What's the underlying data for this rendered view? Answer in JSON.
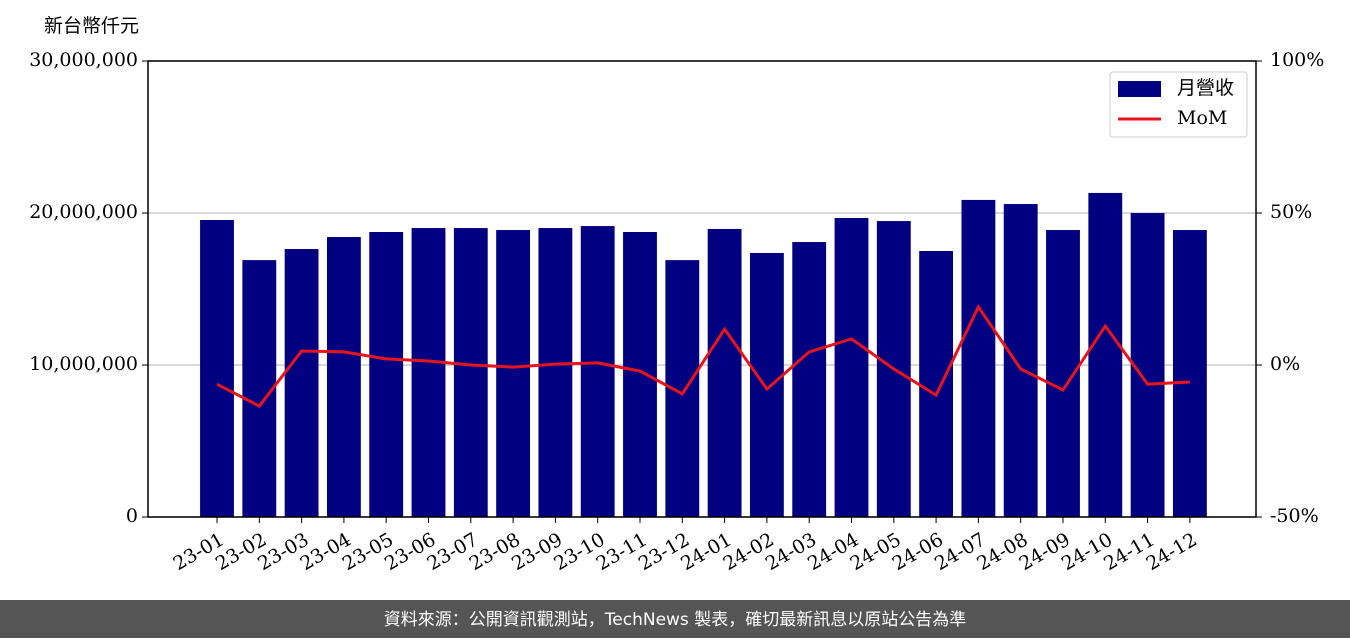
{
  "chart_data": {
    "type": "bar-line",
    "y_label": "新台幣仟元",
    "categories": [
      "23-01",
      "23-02",
      "23-03",
      "23-04",
      "23-05",
      "23-06",
      "23-07",
      "23-08",
      "23-09",
      "23-10",
      "23-11",
      "23-12",
      "24-01",
      "24-02",
      "24-03",
      "24-04",
      "24-05",
      "24-06",
      "24-07",
      "24-08",
      "24-09",
      "24-10",
      "24-11",
      "24-12"
    ],
    "series": [
      {
        "name": "月營收",
        "type": "bar",
        "color": "#000080",
        "values": [
          19540000,
          16900000,
          17630000,
          18420000,
          18750000,
          19010000,
          19010000,
          18880000,
          19010000,
          19140000,
          18750000,
          16900000,
          18950000,
          17370000,
          18090000,
          19670000,
          19470000,
          17500000,
          20860000,
          20590000,
          18880000,
          21320000,
          20000000,
          18880000
        ]
      },
      {
        "name": "MoM",
        "type": "line",
        "axis": "y2",
        "color": "#e8141c",
        "values": [
          -6.3,
          -13.5,
          4.6,
          4.3,
          2.0,
          1.3,
          0,
          -0.7,
          0.3,
          0.7,
          -2.0,
          -9.5,
          11.8,
          -7.9,
          4.3,
          8.6,
          -1.3,
          -9.9,
          19.1,
          -1.3,
          -8.2,
          12.8,
          -6.3,
          -5.6
        ]
      }
    ],
    "ylim": [
      0,
      30000000
    ],
    "yticks": [
      0,
      {
        "value": 10000000,
        "label": "10,000,000"
      },
      {
        "value": 20000000,
        "label": "20,000,000"
      },
      {
        "value": 30000000,
        "label": "30,000,000"
      }
    ],
    "y2lim": [
      -50,
      100
    ],
    "y2ticks": [
      {
        "value": -50,
        "label": "-50%"
      },
      {
        "value": 0,
        "label": "0%"
      },
      {
        "value": 50,
        "label": "50%"
      },
      {
        "value": 100,
        "label": "100%"
      }
    ],
    "grid": true,
    "legend": "upper right"
  },
  "footer": "資料來源：公開資訊觀測站，TechNews 製表，確切最新訊息以原站公告為準"
}
